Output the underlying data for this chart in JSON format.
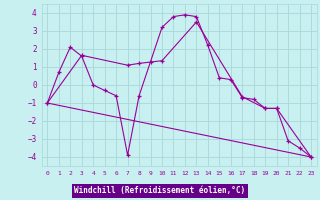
{
  "xlabel": "Windchill (Refroidissement éolien,°C)",
  "bg_color": "#c8f0f0",
  "grid_color": "#a8d8d8",
  "line_color": "#990099",
  "xlabel_bg": "#7700aa",
  "xlabel_fg": "#ffffff",
  "xlim": [
    -0.5,
    23.5
  ],
  "ylim": [
    -4.5,
    4.5
  ],
  "xticks": [
    0,
    1,
    2,
    3,
    4,
    5,
    6,
    7,
    8,
    9,
    10,
    11,
    12,
    13,
    14,
    15,
    16,
    17,
    18,
    19,
    20,
    21,
    22,
    23
  ],
  "yticks": [
    -4,
    -3,
    -2,
    -1,
    0,
    1,
    2,
    3,
    4
  ],
  "line1_x": [
    0,
    1,
    2,
    3,
    4,
    5,
    6,
    7,
    8,
    9,
    10,
    11,
    12,
    13,
    14,
    15,
    16,
    17,
    18,
    19,
    20,
    21,
    22,
    23
  ],
  "line1_y": [
    -1.0,
    0.7,
    2.1,
    1.6,
    0.0,
    -0.3,
    -0.6,
    -3.9,
    -0.6,
    1.3,
    3.2,
    3.8,
    3.9,
    3.8,
    2.2,
    0.4,
    0.3,
    -0.7,
    -0.8,
    -1.3,
    -1.3,
    -3.1,
    -3.5,
    -4.0
  ],
  "line2_x": [
    0,
    3,
    7,
    8,
    10,
    13,
    17,
    19,
    20,
    23
  ],
  "line2_y": [
    -1.0,
    1.65,
    1.1,
    1.2,
    1.35,
    3.5,
    -0.65,
    -1.3,
    -1.3,
    -4.0
  ],
  "line3_x": [
    0,
    23
  ],
  "line3_y": [
    -1.0,
    -4.0
  ]
}
